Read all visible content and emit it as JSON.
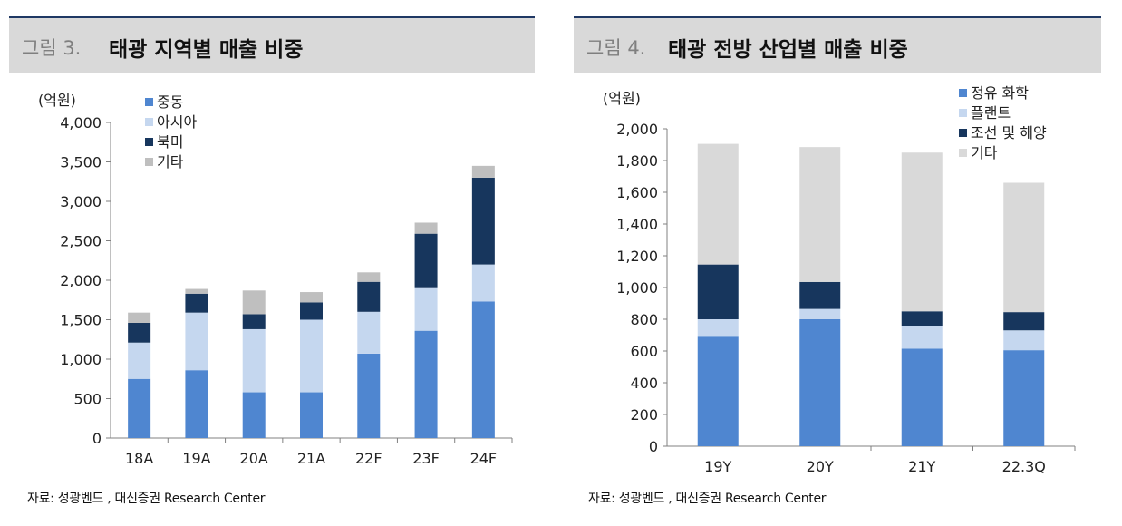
{
  "figures": [
    {
      "fig_label": "그림 3.",
      "title": "태광 지역별 매출 비중",
      "source": "자료: 성광벤드 , 대신증권 Research Center"
    },
    {
      "fig_label": "그림 4.",
      "title": "태광 전방 산업별 매출 비중",
      "source": "자료: 성광벤드 , 대신증권 Research Center"
    }
  ],
  "chart_data": [
    {
      "type": "bar",
      "stacked": true,
      "title": "태광 지역별 매출 비중",
      "unit_label": "(억원)",
      "categories": [
        "18A",
        "19A",
        "20A",
        "21A",
        "22F",
        "23F",
        "24F"
      ],
      "series": [
        {
          "name": "중동",
          "color": "#4f86d0",
          "values": [
            750,
            860,
            580,
            580,
            1070,
            1360,
            1730
          ]
        },
        {
          "name": "아시아",
          "color": "#c5d7ef",
          "values": [
            460,
            730,
            800,
            920,
            530,
            540,
            470
          ]
        },
        {
          "name": "북미",
          "color": "#17365d",
          "values": [
            250,
            240,
            190,
            220,
            380,
            690,
            1100
          ]
        },
        {
          "name": "기타",
          "color": "#bfbfbf",
          "values": [
            130,
            60,
            300,
            130,
            120,
            140,
            150
          ]
        }
      ],
      "ylim": [
        0,
        4000
      ],
      "yticks": [
        0,
        500,
        1000,
        1500,
        2000,
        2500,
        3000,
        3500,
        4000
      ],
      "ytick_labels": [
        "0",
        "500",
        "1,000",
        "1,500",
        "2,000",
        "2,500",
        "3,000",
        "3,500",
        "4,000"
      ],
      "grid": false,
      "legend_position": "top-left"
    },
    {
      "type": "bar",
      "stacked": true,
      "title": "태광 전방 산업별 매출 비중",
      "unit_label": "(억원)",
      "categories": [
        "19Y",
        "20Y",
        "21Y",
        "22.3Q"
      ],
      "series": [
        {
          "name": "정유 화학",
          "color": "#4f86d0",
          "values": [
            690,
            800,
            615,
            605
          ]
        },
        {
          "name": "플랜트",
          "color": "#c5d7ef",
          "values": [
            110,
            65,
            140,
            125
          ]
        },
        {
          "name": "조선 및 해양",
          "color": "#17365d",
          "values": [
            345,
            170,
            95,
            115
          ]
        },
        {
          "name": "기타",
          "color": "#d9d9d9",
          "values": [
            760,
            850,
            1000,
            815
          ]
        }
      ],
      "ylim": [
        0,
        2000
      ],
      "yticks": [
        0,
        200,
        400,
        600,
        800,
        1000,
        1200,
        1400,
        1600,
        1800,
        2000
      ],
      "ytick_labels": [
        "0",
        "200",
        "400",
        "600",
        "800",
        "1,000",
        "1,200",
        "1,400",
        "1,600",
        "1,800",
        "2,000"
      ],
      "grid": false,
      "legend_position": "top-right"
    }
  ]
}
